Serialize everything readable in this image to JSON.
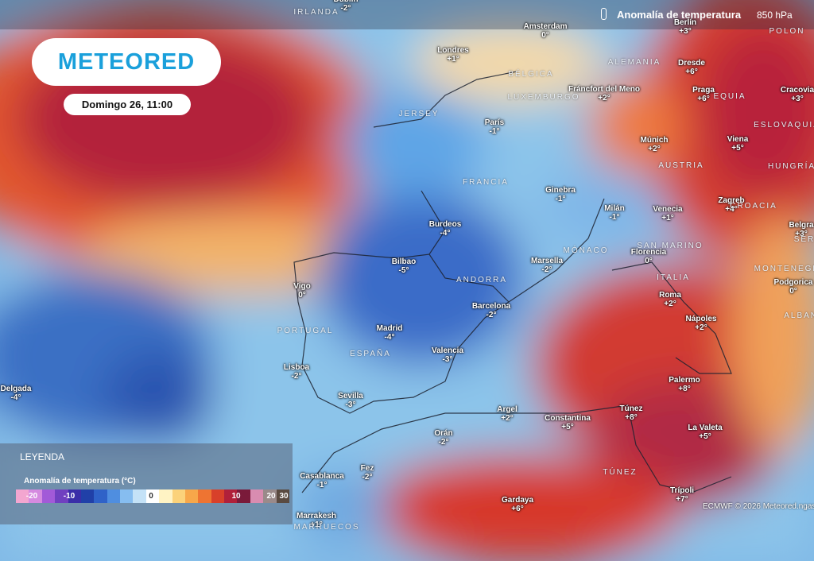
{
  "header": {
    "title": "Anomalía de temperatura",
    "level": "850 hPa"
  },
  "logo": "METEORED",
  "date": "Domingo 26, 11:00",
  "cities": [
    {
      "name": "Dublín",
      "value": "-2°"
    },
    {
      "name": "Londres",
      "value": "+1°"
    },
    {
      "name": "Amsterdam",
      "value": "0°"
    },
    {
      "name": "Berlín",
      "value": "+3°"
    },
    {
      "name": "París",
      "value": "-1°"
    },
    {
      "name": "Fráncfort del Meno",
      "value": "+2°"
    },
    {
      "name": "Dresde",
      "value": "+6°"
    },
    {
      "name": "Praga",
      "value": "+6°"
    },
    {
      "name": "Cracovia",
      "value": "+3°"
    },
    {
      "name": "Viena",
      "value": "+5°"
    },
    {
      "name": "Múnich",
      "value": "+2°"
    },
    {
      "name": "Ginebra",
      "value": "-1°"
    },
    {
      "name": "Milán",
      "value": "-1°"
    },
    {
      "name": "Venecia",
      "value": "+1°"
    },
    {
      "name": "Zagreb",
      "value": "+4°"
    },
    {
      "name": "Belgra",
      "value": "+3°"
    },
    {
      "name": "Burdeos",
      "value": "-4°"
    },
    {
      "name": "Bilbao",
      "value": "-5°"
    },
    {
      "name": "Marsella",
      "value": "-2°"
    },
    {
      "name": "Florencia",
      "value": "0°"
    },
    {
      "name": "Podgorica",
      "value": "0°"
    },
    {
      "name": "Vigo",
      "value": "0°"
    },
    {
      "name": "Roma",
      "value": "+2°"
    },
    {
      "name": "Nápoles",
      "value": "+2°"
    },
    {
      "name": "Madrid",
      "value": "-4°"
    },
    {
      "name": "Barcelona",
      "value": "-2°"
    },
    {
      "name": "Valencia",
      "value": "-3°"
    },
    {
      "name": "Lisboa",
      "value": "-2°"
    },
    {
      "name": "Palermo",
      "value": "+8°"
    },
    {
      "name": "Delgada",
      "value": "-4°"
    },
    {
      "name": "Sevilla",
      "value": "-3°"
    },
    {
      "name": "Argel",
      "value": "+2°"
    },
    {
      "name": "Constantina",
      "value": "+5°"
    },
    {
      "name": "Túnez",
      "value": "+8°"
    },
    {
      "name": "La Valeta",
      "value": "+5°"
    },
    {
      "name": "Orán",
      "value": "-2°"
    },
    {
      "name": "Fez",
      "value": "-2°"
    },
    {
      "name": "Casablanca",
      "value": "-1°"
    },
    {
      "name": "Trípoli",
      "value": "+7°"
    },
    {
      "name": "Gardaya",
      "value": "+6°"
    },
    {
      "name": "Marrakesh",
      "value": "+1°"
    }
  ],
  "countries": [
    "IRLANDA",
    "POLON",
    "ALEMANIA",
    "BÉLGICA",
    "LUXEMBURGO",
    "JERSEY",
    "FRANCIA",
    "AUSTRIA",
    "EQUIA",
    "ESLOVAQUIA",
    "HUNGRÍA",
    "CROACIA",
    "SAN MARINO",
    "MÓNACO",
    "ANDORRA",
    "ITALIA",
    "PORTUGAL",
    "ESPAÑA",
    "MONTENEGRO",
    "ALBANI",
    "SER",
    "TÚNEZ",
    "MARRUECOS"
  ],
  "legend": {
    "title": "LEYENDA",
    "heading": "Anomalía de temperatura (°C)",
    "ticks": [
      "-20",
      "-10",
      "0",
      "10",
      "20",
      "30"
    ]
  },
  "credit": "ECMWF © 2026 Meteored.ngas"
}
